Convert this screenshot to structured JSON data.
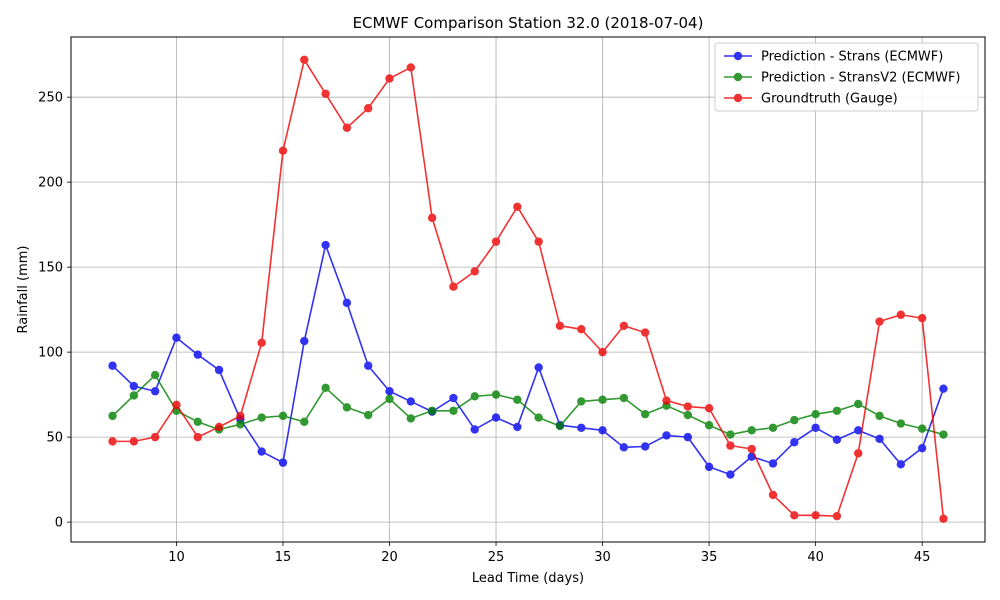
{
  "chart_data": {
    "type": "line",
    "title": "ECMWF Comparison Station 32.0 (2018-07-04)",
    "xlabel": "Lead Time (days)",
    "ylabel": "Rainfall (mm)",
    "xlim": [
      5.05,
      47.95
    ],
    "ylim": [
      -11.7,
      285.4
    ],
    "xticks": [
      10,
      15,
      20,
      25,
      30,
      35,
      40,
      45
    ],
    "yticks": [
      0,
      50,
      100,
      150,
      200,
      250
    ],
    "grid": true,
    "legend_position": "top-right",
    "x": [
      7,
      8,
      9,
      10,
      11,
      12,
      13,
      14,
      15,
      16,
      17,
      18,
      19,
      20,
      21,
      22,
      23,
      24,
      25,
      26,
      27,
      28,
      29,
      30,
      31,
      32,
      33,
      34,
      35,
      36,
      37,
      38,
      39,
      40,
      41,
      42,
      43,
      44,
      45,
      46
    ],
    "series": [
      {
        "name": "Prediction - Strans (ECMWF)",
        "color": "#0000ee",
        "values": [
          92,
          80,
          77,
          108.5,
          98.5,
          89.5,
          60.5,
          41.5,
          35,
          106.5,
          163,
          129,
          92,
          77,
          71,
          65,
          73,
          54.5,
          61.5,
          56,
          91,
          57,
          55.5,
          54,
          44,
          44.5,
          51,
          50,
          32.5,
          28,
          38.5,
          34.5,
          47,
          55.5,
          48.5,
          54,
          49,
          34,
          43.5,
          78.5
        ]
      },
      {
        "name": "Prediction - StransV2 (ECMWF)",
        "color": "#008000",
        "values": [
          62.5,
          74.5,
          86.5,
          65.5,
          59,
          54.5,
          57.5,
          61.5,
          62.5,
          59,
          79,
          67.5,
          63,
          72.5,
          61,
          65.5,
          65.5,
          74,
          75,
          72,
          61.5,
          56.5,
          71,
          72,
          73,
          63.5,
          68.5,
          63,
          57,
          51.5,
          54,
          55.5,
          60,
          63.5,
          65.5,
          69.5,
          62.5,
          58,
          55,
          51.5
        ]
      },
      {
        "name": "Groundtruth (Gauge)",
        "color": "#ee0000",
        "values": [
          47.5,
          47.5,
          50,
          69,
          50,
          56,
          62.5,
          105.5,
          218.5,
          272,
          252,
          232,
          243.5,
          261,
          267.5,
          179,
          138.5,
          147.5,
          165,
          185.5,
          165,
          115.5,
          113.5,
          100,
          115.5,
          111.5,
          71.5,
          68,
          67,
          45,
          43,
          16,
          4,
          4,
          3.5,
          40.5,
          118,
          122,
          120,
          2
        ]
      }
    ]
  }
}
